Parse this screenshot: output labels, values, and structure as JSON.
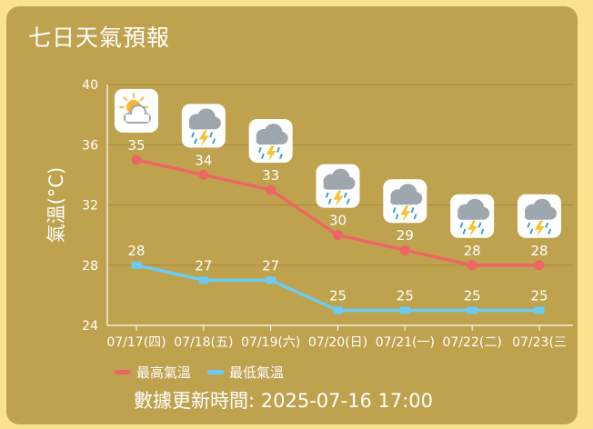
{
  "title": "七日天氣預報",
  "updated_label": "數據更新時間:",
  "updated_value": "2025-07-16 17:00",
  "icons": [
    "sun-cloud-icon",
    "thunderstorm-icon",
    "thunderstorm-icon",
    "thunderstorm-icon",
    "thunderstorm-icon",
    "thunderstorm-icon",
    "thunderstorm-icon"
  ],
  "colors": {
    "high": "#ec6666",
    "low": "#6ccbf2",
    "background": "#bfa24e",
    "page": "#fbe28e"
  },
  "chart_data": {
    "type": "line",
    "categories": [
      "07/17(四)",
      "07/18(五)",
      "07/19(六)",
      "07/20(日)",
      "07/21(一)",
      "07/22(二)",
      "07/23(三"
    ],
    "series": [
      {
        "name": "最高氣溫",
        "values": [
          35,
          34,
          33,
          30,
          29,
          28,
          28
        ]
      },
      {
        "name": "最低氣溫",
        "values": [
          28,
          27,
          27,
          25,
          25,
          25,
          25
        ]
      }
    ],
    "ylabel": "氣溫(°C)",
    "ylim": [
      24,
      40
    ],
    "yticks": [
      24,
      28,
      32,
      36,
      40
    ],
    "grid": true,
    "legend": "bottom-left"
  }
}
